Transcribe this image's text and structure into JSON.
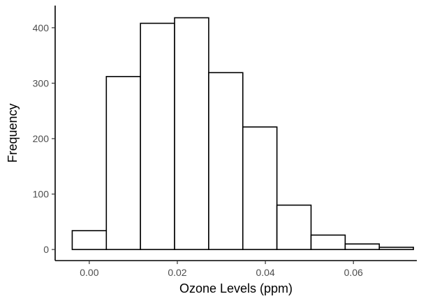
{
  "chart_data": {
    "type": "bar",
    "subtype": "histogram",
    "title": "",
    "xlabel": "Ozone Levels (ppm)",
    "ylabel": "Frequency",
    "bin_width": 0.00775,
    "bins": [
      {
        "x0": -0.003875,
        "x1": 0.003875,
        "count": 34
      },
      {
        "x0": 0.003875,
        "x1": 0.011625,
        "count": 312
      },
      {
        "x0": 0.011625,
        "x1": 0.019375,
        "count": 408
      },
      {
        "x0": 0.019375,
        "x1": 0.027125,
        "count": 418
      },
      {
        "x0": 0.027125,
        "x1": 0.034875,
        "count": 319
      },
      {
        "x0": 0.034875,
        "x1": 0.042625,
        "count": 221
      },
      {
        "x0": 0.042625,
        "x1": 0.050375,
        "count": 80
      },
      {
        "x0": 0.050375,
        "x1": 0.058125,
        "count": 26
      },
      {
        "x0": 0.058125,
        "x1": 0.065875,
        "count": 10
      },
      {
        "x0": 0.065875,
        "x1": 0.073625,
        "count": 4
      }
    ],
    "xlim": [
      -0.00775,
      0.0744
    ],
    "ylim": [
      -20,
      440
    ],
    "xticks": [
      0.0,
      0.02,
      0.04,
      0.06
    ],
    "xtick_labels": [
      "0.00",
      "0.02",
      "0.04",
      "0.06"
    ],
    "yticks": [
      0,
      100,
      200,
      300,
      400
    ],
    "ytick_labels": [
      "0",
      "100",
      "200",
      "300",
      "400"
    ],
    "grid": false,
    "bar_fill": "#ffffff",
    "bar_stroke": "#000000"
  }
}
